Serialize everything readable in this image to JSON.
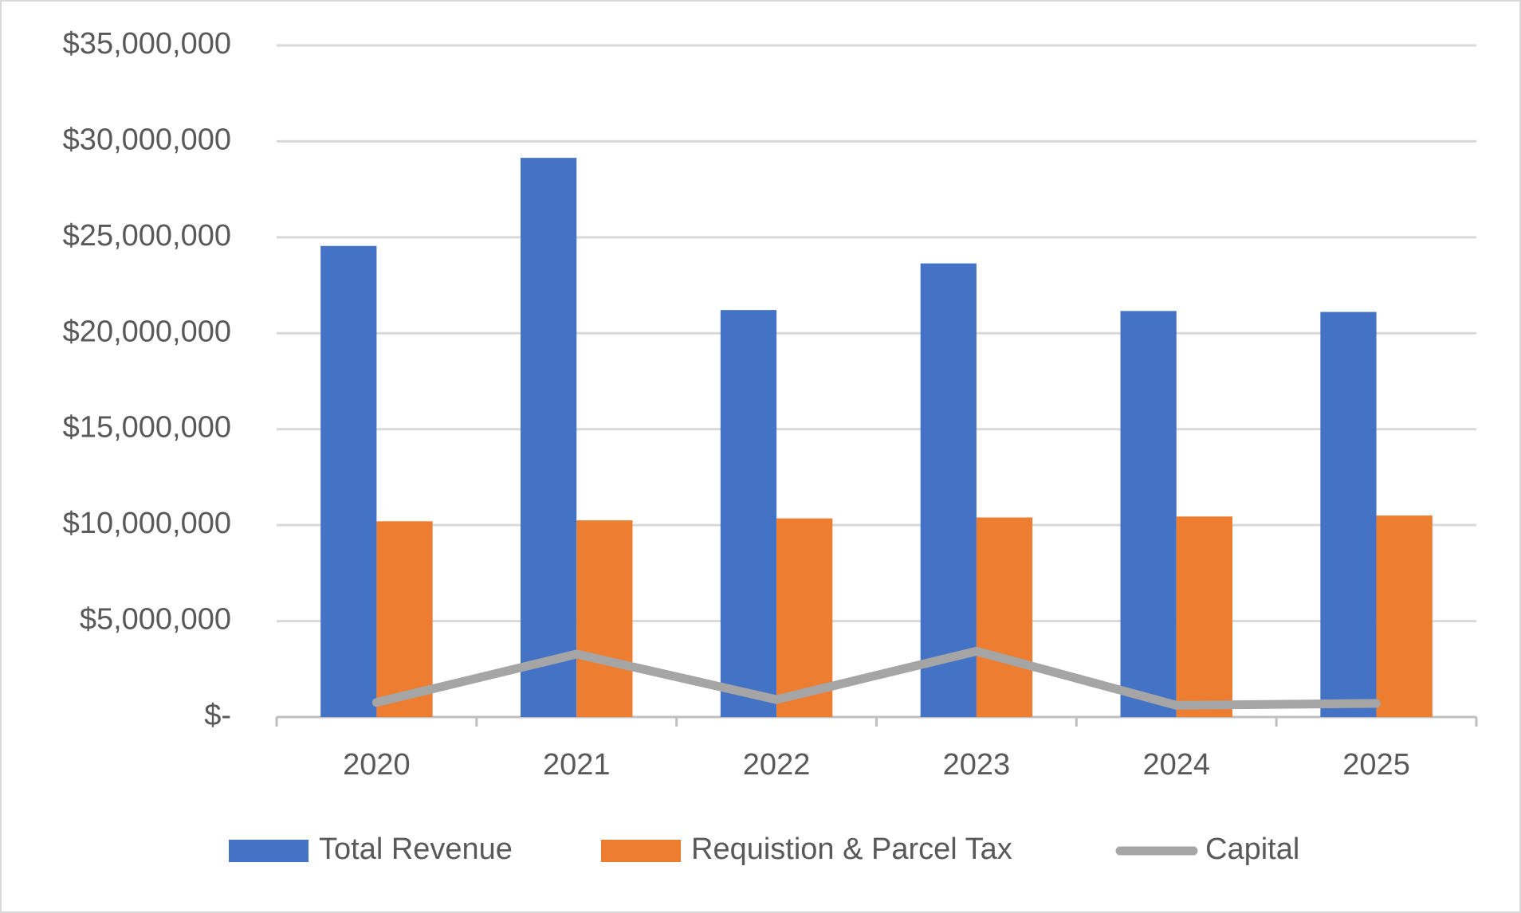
{
  "chart_data": {
    "type": "bar",
    "categories": [
      "2020",
      "2021",
      "2022",
      "2023",
      "2024",
      "2025"
    ],
    "series": [
      {
        "name": "Total Revenue",
        "color": "#4472c4",
        "type": "bar",
        "values": [
          24550000,
          29140000,
          21210000,
          23640000,
          21160000,
          21110000
        ]
      },
      {
        "name": "Requistion & Parcel Tax",
        "color": "#ed7d31",
        "type": "bar",
        "values": [
          10200000,
          10250000,
          10350000,
          10400000,
          10450000,
          10500000
        ]
      },
      {
        "name": "Capital",
        "color": "#a5a5a5",
        "type": "line",
        "values": [
          760000,
          3280000,
          910000,
          3430000,
          610000,
          710000
        ]
      }
    ],
    "ylim": [
      0,
      35000000
    ],
    "yticks": [
      {
        "value": 0,
        "label": "$-"
      },
      {
        "value": 5000000,
        "label": "$5,000,000"
      },
      {
        "value": 10000000,
        "label": "$10,000,000"
      },
      {
        "value": 15000000,
        "label": "$15,000,000"
      },
      {
        "value": 20000000,
        "label": "$20,000,000"
      },
      {
        "value": 25000000,
        "label": "$25,000,000"
      },
      {
        "value": 30000000,
        "label": "$30,000,000"
      },
      {
        "value": 35000000,
        "label": "$35,000,000"
      }
    ],
    "grid": true,
    "legend": "bottom"
  }
}
